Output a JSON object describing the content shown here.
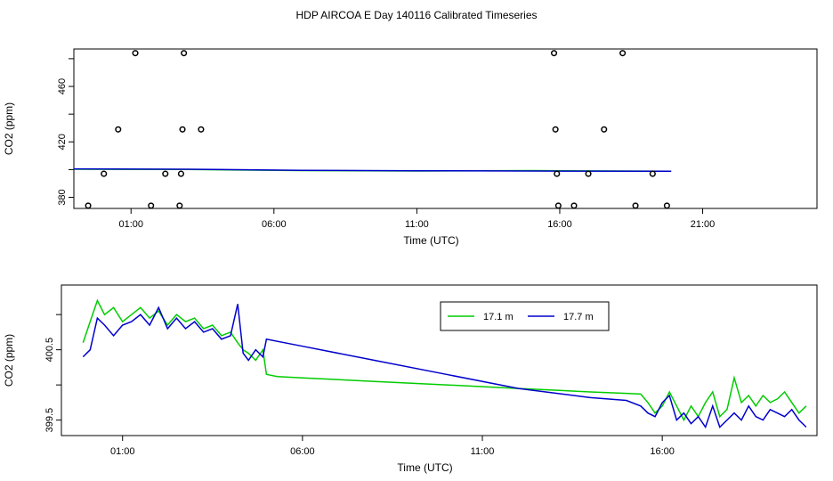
{
  "title": "HDP AIRCOA E  Day 140116  Calibrated Timeseries",
  "colors": {
    "green": "#00cc00",
    "blue": "#0000cc",
    "axis": "#000000"
  },
  "chart_data": [
    {
      "type": "scatter",
      "xlabel": "Time (UTC)",
      "ylabel": "CO2 (ppm)",
      "x_ticks": [
        "01:00",
        "06:00",
        "11:00",
        "16:00",
        "21:00"
      ],
      "x_tick_hours": [
        1,
        6,
        11,
        16,
        21
      ],
      "y_ticks": [
        380,
        420,
        460
      ],
      "y_tick_labels": [
        "380",
        "420",
        "460"
      ],
      "xlim": [
        -1,
        25
      ],
      "ylim": [
        372,
        487
      ],
      "calibration_points": [
        {
          "x": -0.5,
          "y": 374
        },
        {
          "x": 0.05,
          "y": 397
        },
        {
          "x": 0.55,
          "y": 429
        },
        {
          "x": 1.15,
          "y": 484
        },
        {
          "x": 1.7,
          "y": 374
        },
        {
          "x": 2.2,
          "y": 397
        },
        {
          "x": 2.7,
          "y": 374
        },
        {
          "x": 2.75,
          "y": 397
        },
        {
          "x": 2.8,
          "y": 429
        },
        {
          "x": 2.85,
          "y": 484
        },
        {
          "x": 3.45,
          "y": 429
        },
        {
          "x": 15.8,
          "y": 484
        },
        {
          "x": 15.85,
          "y": 429
        },
        {
          "x": 15.9,
          "y": 397
        },
        {
          "x": 15.95,
          "y": 374
        },
        {
          "x": 16.5,
          "y": 374
        },
        {
          "x": 17.0,
          "y": 397
        },
        {
          "x": 17.55,
          "y": 429
        },
        {
          "x": 18.2,
          "y": 484
        },
        {
          "x": 18.65,
          "y": 374
        },
        {
          "x": 19.25,
          "y": 397
        },
        {
          "x": 19.75,
          "y": 374
        }
      ],
      "series": [
        {
          "color": "green",
          "x": [
            -1,
            3,
            7,
            11,
            15,
            19.9
          ],
          "y": [
            400.3,
            400.1,
            399.3,
            399.0,
            399.3,
            398.8
          ]
        },
        {
          "color": "blue",
          "x": [
            -1,
            3,
            7,
            11,
            15,
            19.9
          ],
          "y": [
            400.5,
            400.3,
            399.5,
            399.2,
            399.0,
            398.8
          ]
        }
      ]
    },
    {
      "type": "line",
      "xlabel": "Time (UTC)",
      "ylabel": "CO2 (ppm)",
      "x_ticks": [
        "01:00",
        "06:00",
        "11:00",
        "16:00"
      ],
      "x_tick_hours": [
        1,
        6,
        11,
        16
      ],
      "y_ticks": [
        399.5,
        400.5
      ],
      "y_tick_labels": [
        "399.5",
        "400.5"
      ],
      "y_minor_ticks": [
        399.5,
        400.0,
        400.5,
        401.0
      ],
      "xlim": [
        -0.7,
        20.3
      ],
      "ylim": [
        399.28,
        401.42
      ],
      "legend": [
        {
          "label": "17.1 m",
          "color": "green"
        },
        {
          "label": "17.7 m",
          "color": "blue"
        }
      ],
      "legend_position": "top-right",
      "series": [
        {
          "name": "17.1 m",
          "color": "green",
          "x": [
            -0.1,
            0.1,
            0.3,
            0.5,
            0.75,
            1.0,
            1.25,
            1.5,
            1.75,
            2.0,
            2.25,
            2.5,
            2.75,
            3.0,
            3.25,
            3.5,
            3.75,
            4.0,
            4.2,
            4.35,
            4.5,
            4.7,
            4.9,
            5.0,
            5.3,
            6.0,
            8.0,
            10.0,
            12.0,
            14.0,
            15.0,
            15.4,
            15.6,
            15.8,
            16.0,
            16.2,
            16.4,
            16.6,
            16.8,
            17.0,
            17.2,
            17.4,
            17.6,
            17.8,
            18.0,
            18.2,
            18.4,
            18.6,
            18.8,
            19.0,
            19.2,
            19.4,
            19.6,
            19.8,
            20.0
          ],
          "y": [
            400.6,
            400.9,
            401.2,
            401.0,
            401.1,
            400.9,
            401.0,
            401.1,
            400.95,
            401.05,
            400.85,
            401.0,
            400.9,
            400.95,
            400.8,
            400.85,
            400.7,
            400.75,
            400.6,
            400.5,
            400.45,
            400.35,
            400.5,
            400.15,
            400.12,
            400.1,
            400.05,
            400.0,
            399.95,
            399.9,
            399.88,
            399.87,
            399.75,
            399.6,
            399.7,
            399.9,
            399.7,
            399.5,
            399.7,
            399.55,
            399.75,
            399.9,
            399.55,
            399.65,
            400.1,
            399.75,
            399.85,
            399.7,
            399.85,
            399.75,
            399.8,
            399.9,
            399.75,
            399.6,
            399.7
          ]
        },
        {
          "name": "17.7 m",
          "color": "blue",
          "x": [
            -0.1,
            0.1,
            0.3,
            0.5,
            0.75,
            1.0,
            1.25,
            1.5,
            1.75,
            2.0,
            2.25,
            2.5,
            2.75,
            3.0,
            3.25,
            3.5,
            3.75,
            4.0,
            4.2,
            4.35,
            4.5,
            4.7,
            4.9,
            5.0,
            6.0,
            8.0,
            10.0,
            12.0,
            14.0,
            15.0,
            15.4,
            15.6,
            15.8,
            16.0,
            16.2,
            16.4,
            16.6,
            16.8,
            17.0,
            17.2,
            17.4,
            17.6,
            17.8,
            18.0,
            18.2,
            18.4,
            18.6,
            18.8,
            19.0,
            19.2,
            19.4,
            19.6,
            19.8,
            20.0
          ],
          "y": [
            400.4,
            400.5,
            400.95,
            400.85,
            400.7,
            400.85,
            400.9,
            401.0,
            400.85,
            401.1,
            400.8,
            400.95,
            400.8,
            400.9,
            400.75,
            400.8,
            400.65,
            400.7,
            401.15,
            400.45,
            400.35,
            400.5,
            400.4,
            400.65,
            400.55,
            400.35,
            400.15,
            399.95,
            399.82,
            399.78,
            399.7,
            399.6,
            399.55,
            399.75,
            399.85,
            399.5,
            399.6,
            399.45,
            399.55,
            399.4,
            399.7,
            399.4,
            399.5,
            399.6,
            399.5,
            399.7,
            399.55,
            399.5,
            399.65,
            399.6,
            399.55,
            399.65,
            399.5,
            399.4
          ]
        }
      ]
    }
  ]
}
